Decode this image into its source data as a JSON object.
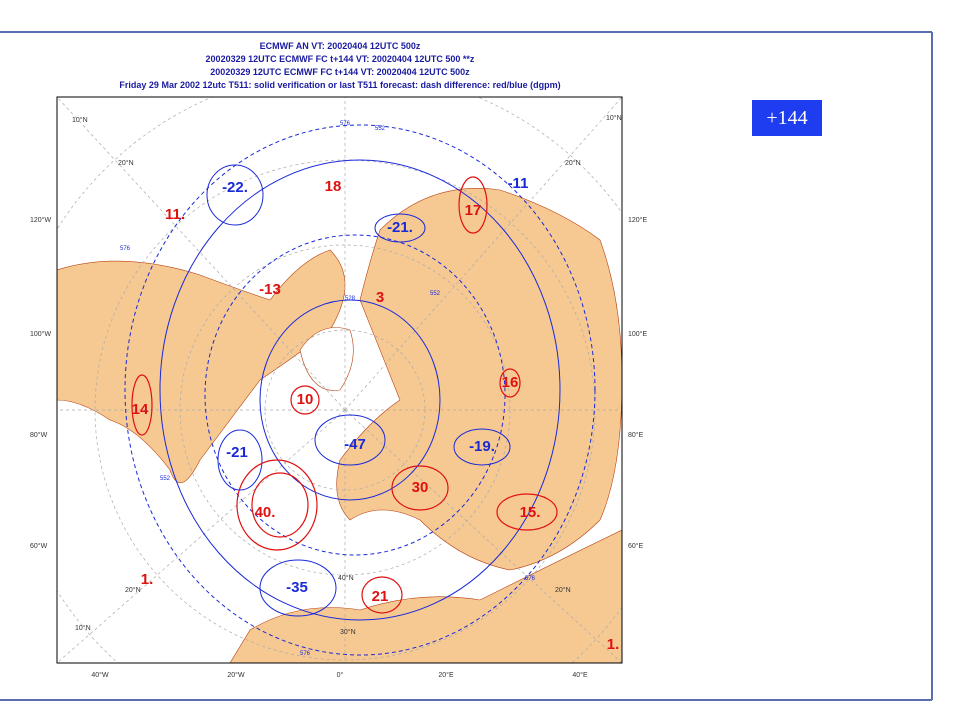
{
  "header": {
    "lines": [
      "ECMWF AN VT: 20020404 12UTC 500z",
      "20020329 12UTC ECMWF FC t+144 VT: 20020404 12UTC 500 **z",
      "20020329 12UTC ECMWF FC t+144 VT: 20020404 12UTC 500z",
      "Friday 29 Mar 2002 12utc T511: solid    verification or last T511 forecast: dash    difference: red/blue (dgpm)"
    ]
  },
  "badge": "+144",
  "map": {
    "left_labels": [
      "120°W",
      "100°W",
      "80°W",
      "60°W"
    ],
    "right_labels": [
      "120°E",
      "100°E",
      "80°E",
      "60°E"
    ],
    "bottom_labels": [
      "40°W",
      "20°W",
      "0°",
      "20°E",
      "40°E"
    ],
    "grid_labels": [
      "10°N",
      "20°N",
      "10°N",
      "20°N",
      "30°N",
      "40°N",
      "20°N",
      "20°N",
      "10°N"
    ],
    "contour_labels": [
      "576",
      "552",
      "528",
      "576",
      "552",
      "576",
      "576",
      "552"
    ],
    "anomalies": [
      {
        "text": "-22.",
        "color": "#1a2ad8"
      },
      {
        "text": "18",
        "color": "#e01010"
      },
      {
        "text": "11.",
        "color": "#e01010"
      },
      {
        "text": "17",
        "color": "#e01010"
      },
      {
        "text": "-11",
        "color": "#1a2ad8"
      },
      {
        "text": "-21.",
        "color": "#1a2ad8"
      },
      {
        "text": "-13",
        "color": "#e01010"
      },
      {
        "text": "3",
        "color": "#e01010"
      },
      {
        "text": "16",
        "color": "#e01010"
      },
      {
        "text": "14",
        "color": "#e01010"
      },
      {
        "text": "10",
        "color": "#e01010"
      },
      {
        "text": "-47",
        "color": "#1a2ad8"
      },
      {
        "text": "-21",
        "color": "#1a2ad8"
      },
      {
        "text": "-19.",
        "color": "#1a2ad8"
      },
      {
        "text": "30",
        "color": "#e01010"
      },
      {
        "text": "40.",
        "color": "#e01010"
      },
      {
        "text": "15.",
        "color": "#e01010"
      },
      {
        "text": "-35",
        "color": "#1a2ad8"
      },
      {
        "text": "21",
        "color": "#e01010"
      },
      {
        "text": "1.",
        "color": "#e01010"
      },
      {
        "text": "1.",
        "color": "#e01010"
      }
    ]
  }
}
